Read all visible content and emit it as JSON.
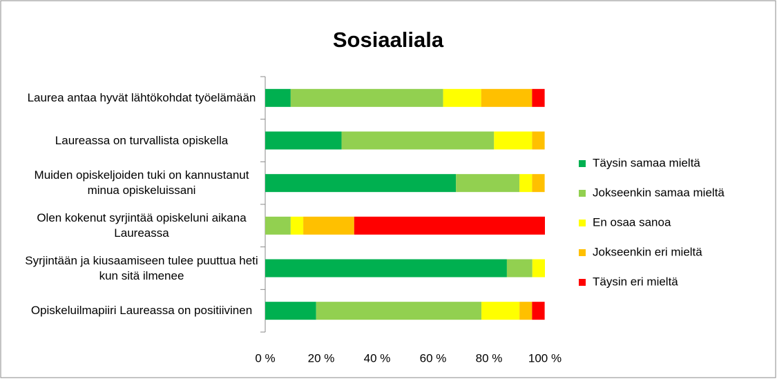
{
  "chart_data": {
    "type": "stacked_bar_horizontal",
    "title": "Sosiaaliala",
    "categories": [
      "Laurea antaa hyvät lähtökohdat työelämään",
      "Laureassa on turvallista opiskella",
      "Muiden opiskeljoiden tuki on kannustanut minua opiskeluissani",
      "Olen kokenut syrjintää opiskeluni aikana Laureassa",
      "Syrjintään ja kiusaamiseen tulee puuttua heti kun sitä ilmenee",
      "Opiskeluilmapiiri Laureassa on positiivinen"
    ],
    "series": [
      {
        "name": "Täysin samaa mieltä",
        "color": "#00b050",
        "values": [
          9.1,
          27.3,
          68.2,
          0,
          86.4,
          18.2
        ]
      },
      {
        "name": "Jokseenkin samaa mieltä",
        "color": "#92d050",
        "values": [
          54.5,
          54.5,
          22.7,
          9.1,
          9.1,
          59.1
        ]
      },
      {
        "name": "En osaa sanoa",
        "color": "#ffff00",
        "values": [
          13.6,
          13.6,
          4.5,
          4.5,
          4.5,
          13.6
        ]
      },
      {
        "name": "Jokseenkin eri mieltä",
        "color": "#ffc000",
        "values": [
          18.2,
          4.5,
          4.5,
          18.2,
          0,
          4.5
        ]
      },
      {
        "name": "Täysin eri mieltä",
        "color": "#ff0000",
        "values": [
          4.5,
          0,
          0,
          68.2,
          0,
          4.5
        ]
      }
    ],
    "xlim": [
      0,
      100
    ],
    "xticks": [
      {
        "value": 0,
        "label": "0 %"
      },
      {
        "value": 20,
        "label": "20 %"
      },
      {
        "value": 40,
        "label": "40 %"
      },
      {
        "value": 60,
        "label": "60 %"
      },
      {
        "value": 80,
        "label": "80 %"
      },
      {
        "value": 100,
        "label": "100 %"
      }
    ],
    "legend": "right"
  }
}
